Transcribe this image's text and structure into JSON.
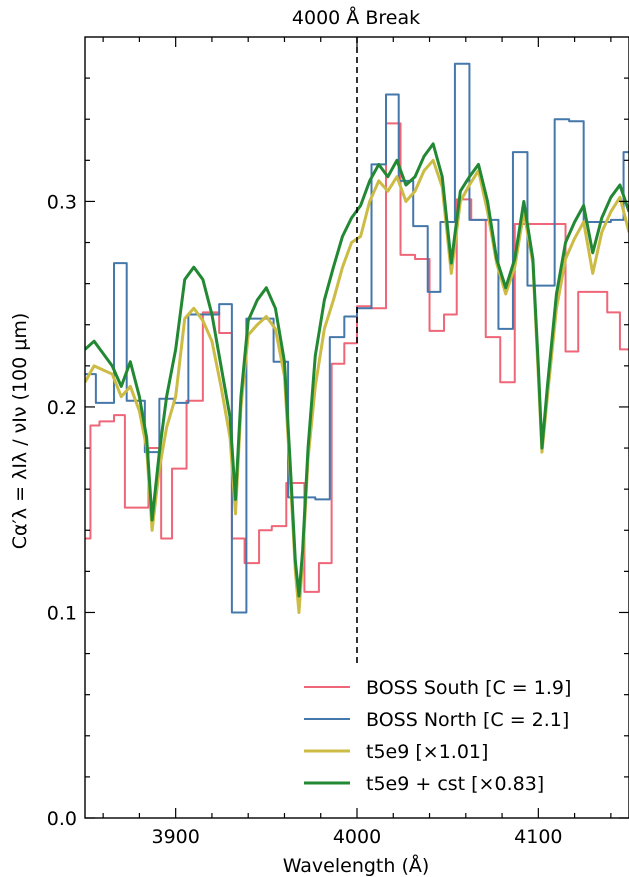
{
  "chart_data": {
    "type": "line",
    "title": "4000 Å Break",
    "xlabel": "Wavelength (Å)",
    "ylabel": "Cα′λ = λIλ / νIν (100 μm)",
    "xlim": [
      3850,
      4150
    ],
    "ylim": [
      0.0,
      0.38
    ],
    "xticks": [
      3900,
      4000,
      4100
    ],
    "yticks": [
      0.0,
      0.1,
      0.2,
      0.3
    ],
    "xtick_labels": [
      "3900",
      "4000",
      "4100"
    ],
    "ytick_labels": [
      "0.0",
      "0.1",
      "0.2",
      "0.3"
    ],
    "grid": false,
    "legend_position": "lower-right",
    "vline": 4000,
    "series": [
      {
        "name": "BOSS South  [C = 1.9]",
        "color": "#ee6677",
        "style": "step",
        "x": [
          3850,
          3853,
          3858,
          3866,
          3872,
          3885,
          3892,
          3898,
          3906,
          3915,
          3924,
          3931,
          3938,
          3946,
          3953,
          3961,
          3971,
          3979,
          3986,
          3993,
          4000,
          4008,
          4016,
          4024,
          4032,
          4040,
          4048,
          4055,
          4063,
          4071,
          4079,
          4087,
          4095,
          4107,
          4115,
          4122,
          4130,
          4138,
          4145,
          4150
        ],
        "y": [
          0.136,
          0.191,
          0.193,
          0.196,
          0.151,
          0.18,
          0.136,
          0.17,
          0.203,
          0.246,
          0.236,
          0.136,
          0.124,
          0.14,
          0.142,
          0.163,
          0.11,
          0.124,
          0.221,
          0.231,
          0.249,
          0.248,
          0.338,
          0.274,
          0.272,
          0.237,
          0.245,
          0.301,
          0.291,
          0.234,
          0.212,
          0.289,
          0.289,
          0.289,
          0.227,
          0.256,
          0.256,
          0.246,
          0.228,
          0.228
        ]
      },
      {
        "name": "BOSS North  [C = 2.1]",
        "color": "#4477aa",
        "style": "step",
        "x": [
          3850,
          3856,
          3866,
          3873,
          3883,
          3891,
          3899,
          3907,
          3913,
          3924,
          3931,
          3939,
          3946,
          3954,
          3962,
          3969,
          3977,
          3985,
          3993,
          4000,
          4008,
          4016,
          4023,
          4031,
          4039,
          4046,
          4054,
          4062,
          4070,
          4078,
          4086,
          4094,
          4101,
          4109,
          4117,
          4125,
          4132,
          4140,
          4147,
          4150
        ],
        "y": [
          0.216,
          0.202,
          0.27,
          0.203,
          0.178,
          0.204,
          0.202,
          0.245,
          0.245,
          0.25,
          0.1,
          0.243,
          0.243,
          0.222,
          0.156,
          0.156,
          0.155,
          0.234,
          0.244,
          0.248,
          0.318,
          0.352,
          0.31,
          0.288,
          0.256,
          0.29,
          0.367,
          0.291,
          0.291,
          0.238,
          0.324,
          0.259,
          0.259,
          0.34,
          0.339,
          0.29,
          0.29,
          0.291,
          0.324,
          0.324
        ]
      },
      {
        "name": "t5e9  [×1.01]",
        "color": "#ccbb44",
        "style": "line",
        "x": [
          3850,
          3855,
          3860,
          3865,
          3870,
          3875,
          3880,
          3884,
          3887,
          3891,
          3895,
          3900,
          3905,
          3910,
          3915,
          3920,
          3925,
          3930,
          3933,
          3936,
          3940,
          3945,
          3950,
          3955,
          3960,
          3963,
          3966,
          3968,
          3970,
          3973,
          3977,
          3982,
          3987,
          3992,
          3997,
          4002,
          4007,
          4012,
          4017,
          4022,
          4027,
          4032,
          4037,
          4042,
          4047,
          4052,
          4057,
          4062,
          4067,
          4072,
          4077,
          4082,
          4087,
          4092,
          4097,
          4100,
          4102,
          4105,
          4110,
          4115,
          4120,
          4125,
          4130,
          4135,
          4140,
          4145,
          4150
        ],
        "y": [
          0.212,
          0.22,
          0.218,
          0.216,
          0.205,
          0.21,
          0.198,
          0.18,
          0.14,
          0.17,
          0.19,
          0.205,
          0.243,
          0.248,
          0.242,
          0.232,
          0.21,
          0.185,
          0.148,
          0.2,
          0.235,
          0.24,
          0.244,
          0.238,
          0.215,
          0.17,
          0.12,
          0.1,
          0.125,
          0.175,
          0.21,
          0.238,
          0.252,
          0.268,
          0.28,
          0.283,
          0.3,
          0.31,
          0.305,
          0.312,
          0.3,
          0.305,
          0.315,
          0.32,
          0.307,
          0.265,
          0.3,
          0.308,
          0.315,
          0.295,
          0.27,
          0.255,
          0.268,
          0.295,
          0.27,
          0.215,
          0.178,
          0.205,
          0.248,
          0.272,
          0.282,
          0.29,
          0.265,
          0.285,
          0.295,
          0.302,
          0.285
        ]
      },
      {
        "name": "t5e9 + cst  [×0.83]",
        "color": "#228833",
        "style": "line",
        "x": [
          3850,
          3855,
          3860,
          3865,
          3870,
          3875,
          3880,
          3884,
          3887,
          3891,
          3895,
          3900,
          3905,
          3910,
          3915,
          3920,
          3925,
          3930,
          3933,
          3936,
          3940,
          3945,
          3950,
          3955,
          3960,
          3963,
          3966,
          3968,
          3970,
          3973,
          3977,
          3982,
          3987,
          3992,
          3997,
          4002,
          4007,
          4012,
          4017,
          4022,
          4027,
          4032,
          4037,
          4042,
          4047,
          4052,
          4057,
          4062,
          4067,
          4072,
          4077,
          4082,
          4087,
          4092,
          4097,
          4100,
          4102,
          4105,
          4110,
          4115,
          4120,
          4125,
          4130,
          4135,
          4140,
          4145,
          4150
        ],
        "y": [
          0.228,
          0.232,
          0.226,
          0.22,
          0.21,
          0.222,
          0.205,
          0.185,
          0.145,
          0.178,
          0.205,
          0.228,
          0.262,
          0.268,
          0.262,
          0.245,
          0.22,
          0.195,
          0.155,
          0.205,
          0.242,
          0.252,
          0.258,
          0.248,
          0.222,
          0.175,
          0.125,
          0.108,
          0.13,
          0.18,
          0.225,
          0.252,
          0.268,
          0.283,
          0.292,
          0.298,
          0.31,
          0.318,
          0.312,
          0.32,
          0.308,
          0.312,
          0.322,
          0.328,
          0.312,
          0.27,
          0.305,
          0.312,
          0.318,
          0.3,
          0.272,
          0.258,
          0.272,
          0.3,
          0.272,
          0.22,
          0.18,
          0.21,
          0.255,
          0.28,
          0.29,
          0.298,
          0.275,
          0.292,
          0.302,
          0.308,
          0.295
        ]
      }
    ]
  }
}
